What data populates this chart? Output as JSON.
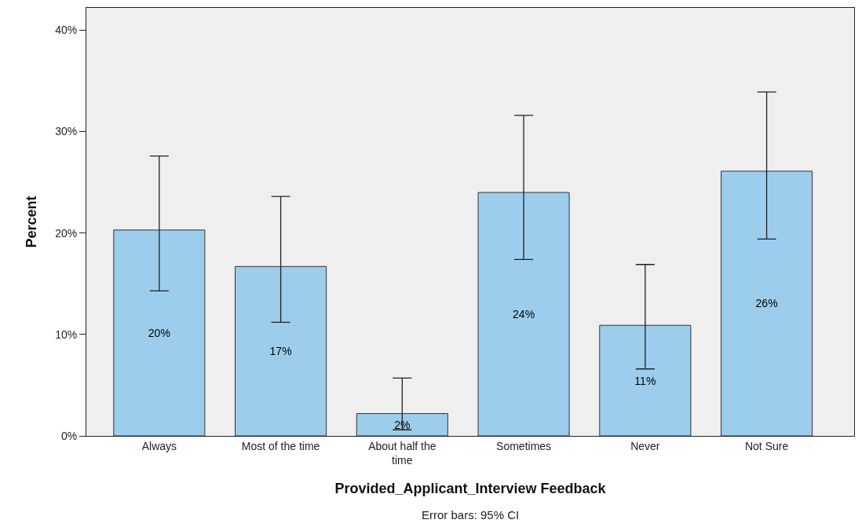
{
  "chart_data": {
    "type": "bar",
    "xlabel": "Provided_Applicant_Interview Feedback",
    "ylabel": "Percent",
    "categories": [
      "Always",
      "Most of the time",
      "About half the time",
      "Sometimes",
      "Never",
      "Not Sure"
    ],
    "values": [
      20.3,
      16.7,
      2.2,
      24.0,
      10.9,
      26.1
    ],
    "value_labels": [
      "20%",
      "17%",
      "2%",
      "24%",
      "11%",
      "26%"
    ],
    "errors": [
      [
        14.3,
        27.6
      ],
      [
        11.2,
        23.6
      ],
      [
        0.6,
        5.7
      ],
      [
        17.4,
        31.6
      ],
      [
        6.6,
        16.9
      ],
      [
        19.4,
        33.9
      ]
    ],
    "color": "#9ccdec",
    "ylim": [
      0,
      42.2
    ],
    "yticks": [
      {
        "value": 0,
        "label": "0%"
      },
      {
        "value": 10,
        "label": "10%"
      },
      {
        "value": 20,
        "label": "20%"
      },
      {
        "value": 30,
        "label": "30%"
      },
      {
        "value": 40,
        "label": "40%"
      }
    ],
    "annotations": [
      "Error bars: 95% CI"
    ]
  }
}
